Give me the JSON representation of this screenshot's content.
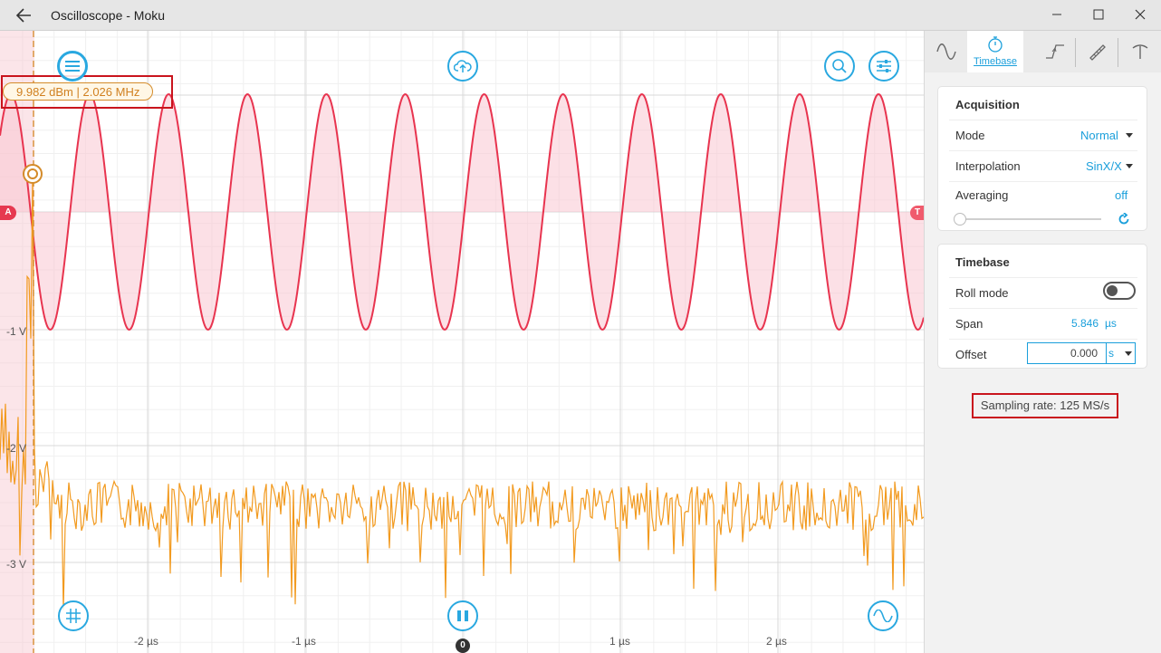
{
  "window": {
    "title": "Oscilloscope - Moku"
  },
  "plot": {
    "y_ticks": [
      "-1 V",
      "-2 V",
      "-3 V"
    ],
    "x_ticks": [
      "-2 µs",
      "-1 µs",
      "1 µs",
      "2 µs"
    ],
    "cursor_readout": "9.982 dBm | 2.026 MHz",
    "marker_a": "A",
    "marker_t": "T",
    "marker_zero": "0",
    "colors": {
      "channel_a": "#e8344f",
      "channel_b": "#f29a1f",
      "accent": "#29a8e0"
    },
    "icons": [
      "menu-icon",
      "cloud-upload-icon",
      "zoom-icon",
      "sliders-icon",
      "grid-icon",
      "pause-icon",
      "waveform-icon"
    ]
  },
  "tabs": [
    {
      "icon": "sine-icon",
      "label": ""
    },
    {
      "icon": "stopwatch-icon",
      "label": "Timebase"
    },
    {
      "icon": "trigger-edge-icon",
      "label": ""
    },
    {
      "icon": "ruler-icon",
      "label": ""
    },
    {
      "icon": "probe-icon",
      "label": ""
    }
  ],
  "acquisition": {
    "heading": "Acquisition",
    "mode_label": "Mode",
    "mode_value": "Normal",
    "interp_label": "Interpolation",
    "interp_value": "SinX/X",
    "avg_label": "Averaging",
    "avg_value": "off"
  },
  "timebase": {
    "heading": "Timebase",
    "roll_label": "Roll mode",
    "roll_on": false,
    "span_label": "Span",
    "span_value": "5.846",
    "span_unit": "µs",
    "offset_label": "Offset",
    "offset_value": "0.000",
    "offset_unit": "s"
  },
  "sampling_rate": "Sampling rate: 125 MS/s"
}
